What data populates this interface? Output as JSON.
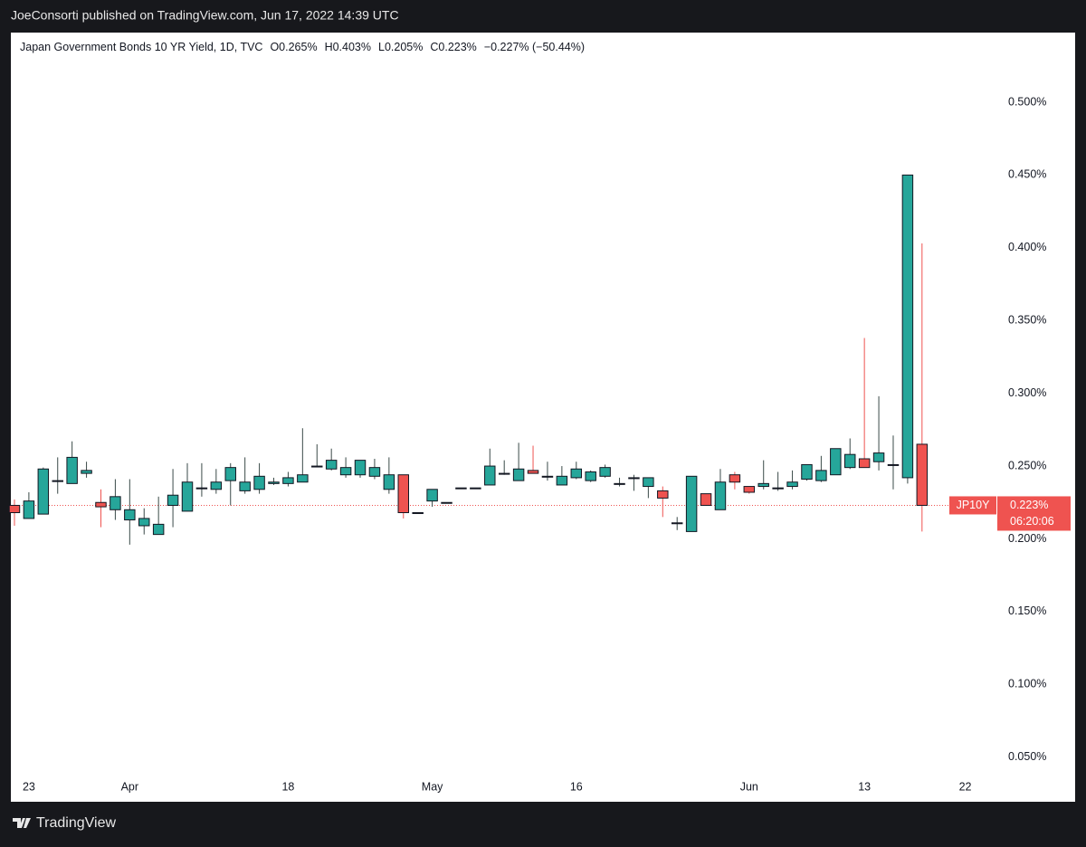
{
  "header": {
    "publisher_line": "JoeConsorti published on TradingView.com, Jun 17, 2022 14:39 UTC"
  },
  "chart_data": {
    "type": "candlestick",
    "title": "Japan Government Bonds 10 YR Yield, 1D, TVC",
    "legend_items": [
      "O0.265%",
      "H0.403%",
      "L0.205%",
      "C0.223%",
      "−0.227% (−50.44%)"
    ],
    "open": [
      0.223,
      0.214,
      0.217,
      0.24,
      0.238,
      0.245,
      0.225,
      0.22,
      0.213,
      0.209,
      0.203,
      0.223,
      0.219,
      0.235,
      0.234,
      0.24,
      0.233,
      0.234,
      0.238,
      0.238,
      0.239,
      0.25,
      0.248,
      0.244,
      0.244,
      0.243,
      0.234,
      0.244,
      0.218,
      0.226,
      0.225,
      0.235,
      0.235,
      0.237,
      0.245,
      0.24,
      0.247,
      0.243,
      0.237,
      0.242,
      0.24,
      0.243,
      0.238,
      0.242,
      0.236,
      0.233,
      0.211,
      0.205,
      0.231,
      0.22,
      0.244,
      0.236,
      0.236,
      0.235,
      0.236,
      0.241,
      0.24,
      0.244,
      0.249,
      0.255,
      0.253,
      0.251,
      0.242,
      0.265
    ],
    "high": [
      0.227,
      0.232,
      0.249,
      0.256,
      0.267,
      0.253,
      0.234,
      0.241,
      0.241,
      0.221,
      0.229,
      0.248,
      0.252,
      0.252,
      0.248,
      0.252,
      0.256,
      0.252,
      0.242,
      0.246,
      0.276,
      0.265,
      0.262,
      0.256,
      0.254,
      0.255,
      0.256,
      0.244,
      0.218,
      0.234,
      0.225,
      0.235,
      0.235,
      0.262,
      0.254,
      0.266,
      0.264,
      0.253,
      0.25,
      0.253,
      0.247,
      0.251,
      0.242,
      0.244,
      0.242,
      0.236,
      0.215,
      0.243,
      0.231,
      0.248,
      0.246,
      0.236,
      0.254,
      0.246,
      0.247,
      0.251,
      0.257,
      0.262,
      0.269,
      0.338,
      0.298,
      0.271,
      0.45,
      0.403
    ],
    "low": [
      0.209,
      0.214,
      0.217,
      0.231,
      0.238,
      0.242,
      0.208,
      0.213,
      0.196,
      0.203,
      0.203,
      0.208,
      0.219,
      0.229,
      0.231,
      0.223,
      0.231,
      0.231,
      0.237,
      0.236,
      0.239,
      0.25,
      0.247,
      0.242,
      0.242,
      0.241,
      0.231,
      0.214,
      0.218,
      0.222,
      0.225,
      0.235,
      0.235,
      0.237,
      0.244,
      0.24,
      0.245,
      0.24,
      0.237,
      0.241,
      0.239,
      0.242,
      0.236,
      0.233,
      0.228,
      0.215,
      0.206,
      0.205,
      0.223,
      0.22,
      0.234,
      0.231,
      0.234,
      0.233,
      0.234,
      0.24,
      0.239,
      0.244,
      0.248,
      0.249,
      0.247,
      0.234,
      0.238,
      0.205
    ],
    "close": [
      0.218,
      0.226,
      0.248,
      0.24,
      0.256,
      0.247,
      0.222,
      0.229,
      0.22,
      0.214,
      0.21,
      0.23,
      0.239,
      0.235,
      0.239,
      0.249,
      0.239,
      0.243,
      0.239,
      0.242,
      0.244,
      0.25,
      0.254,
      0.249,
      0.254,
      0.249,
      0.244,
      0.218,
      0.218,
      0.234,
      0.225,
      0.235,
      0.235,
      0.25,
      0.245,
      0.248,
      0.245,
      0.243,
      0.243,
      0.248,
      0.246,
      0.249,
      0.238,
      0.242,
      0.242,
      0.228,
      0.211,
      0.243,
      0.223,
      0.239,
      0.239,
      0.232,
      0.238,
      0.235,
      0.239,
      0.251,
      0.247,
      0.262,
      0.258,
      0.249,
      0.259,
      0.251,
      0.45,
      0.223
    ],
    "up_color": "#26a69a",
    "down_color": "#ef5350",
    "border_color": "#131722",
    "up_wick_color": "#3a4a48",
    "xlim": [
      -0.25,
      68.1
    ],
    "xticks": [
      {
        "value": 1,
        "label": "23"
      },
      {
        "value": 8,
        "label": "Apr"
      },
      {
        "value": 19,
        "label": "18"
      },
      {
        "value": 29,
        "label": "May"
      },
      {
        "value": 39,
        "label": "16"
      },
      {
        "value": 51,
        "label": "Jun"
      },
      {
        "value": 59,
        "label": "13"
      },
      {
        "value": 66,
        "label": "22"
      }
    ],
    "ylim": [
      0.0386,
      0.5479
    ],
    "yticks": [
      {
        "value": 0.05,
        "label": "0.050%"
      },
      {
        "value": 0.1,
        "label": "0.100%"
      },
      {
        "value": 0.15,
        "label": "0.150%"
      },
      {
        "value": 0.2,
        "label": "0.200%"
      },
      {
        "value": 0.25,
        "label": "0.250%"
      },
      {
        "value": 0.3,
        "label": "0.300%"
      },
      {
        "value": 0.35,
        "label": "0.350%"
      },
      {
        "value": 0.4,
        "label": "0.400%"
      },
      {
        "value": 0.45,
        "label": "0.450%"
      },
      {
        "value": 0.5,
        "label": "0.500%"
      }
    ],
    "last_price": {
      "value": 0.223,
      "label": "0.223%"
    },
    "symbol_short": "JP10Y",
    "countdown": "06:20:06",
    "grid": false
  },
  "footer": {
    "brand": "TradingView"
  }
}
